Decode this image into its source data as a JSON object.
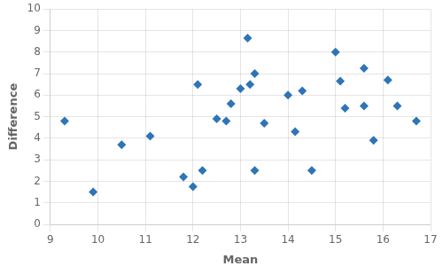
{
  "chart_data": {
    "type": "scatter",
    "x": [
      9.3,
      9.9,
      10.5,
      11.1,
      11.8,
      12.1,
      12.2,
      12.5,
      12.7,
      12.8,
      13.0,
      13.15,
      13.2,
      13.3,
      13.5,
      14.0,
      14.15,
      14.3,
      14.5,
      15.0,
      15.1,
      15.6,
      15.8,
      16.1,
      16.7,
      12.0,
      13.3,
      15.2,
      15.6,
      16.3
    ],
    "values": [
      4.8,
      1.5,
      3.7,
      4.1,
      2.2,
      6.5,
      2.5,
      4.9,
      4.8,
      5.6,
      6.3,
      8.65,
      6.5,
      7.0,
      4.7,
      6.0,
      4.3,
      6.2,
      2.5,
      8.0,
      6.65,
      7.25,
      3.9,
      6.7,
      4.8,
      1.75,
      2.5,
      5.4,
      5.5,
      5.5
    ],
    "color": "#2E75B6",
    "marker": "diamond",
    "xlabel": "Mean",
    "ylabel": "Difference",
    "xlim": [
      9,
      17
    ],
    "ylim": [
      0,
      10
    ],
    "xticks": [
      9,
      10,
      11,
      12,
      13,
      14,
      15,
      16,
      17
    ],
    "yticks": [
      0,
      1,
      2,
      3,
      4,
      5,
      6,
      7,
      8,
      9,
      10
    ],
    "grid": true
  }
}
